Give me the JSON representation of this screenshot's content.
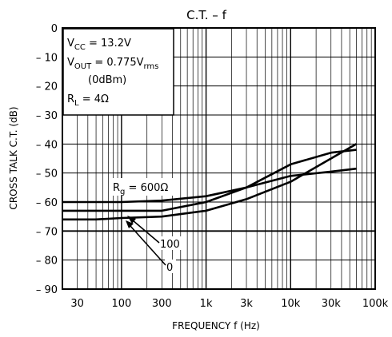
{
  "chart_data": {
    "type": "line",
    "title": "C.T.  –  f",
    "xlabel": "FREQUENCY   f    (Hz)",
    "ylabel": "CROSS TALK   C.T.   (dB)",
    "x_scale": "log",
    "xlim": [
      20,
      100000
    ],
    "ylim": [
      -90,
      0
    ],
    "grid": true,
    "x_ticks": [
      {
        "value": 30,
        "label": "30"
      },
      {
        "value": 100,
        "label": "100"
      },
      {
        "value": 300,
        "label": "300"
      },
      {
        "value": 1000,
        "label": "1k"
      },
      {
        "value": 3000,
        "label": "3k"
      },
      {
        "value": 10000,
        "label": "10k"
      },
      {
        "value": 30000,
        "label": "30k"
      },
      {
        "value": 100000,
        "label": "100k"
      }
    ],
    "y_ticks": [
      {
        "value": 0,
        "label": "0"
      },
      {
        "value": -10,
        "label": "– 10"
      },
      {
        "value": -20,
        "label": "– 20"
      },
      {
        "value": -30,
        "label": "– 30"
      },
      {
        "value": -40,
        "label": "– 40"
      },
      {
        "value": -50,
        "label": "– 50"
      },
      {
        "value": -60,
        "label": "– 60"
      },
      {
        "value": -70,
        "label": "– 70"
      },
      {
        "value": -80,
        "label": "– 80"
      },
      {
        "value": -90,
        "label": "– 90"
      }
    ],
    "conditions": {
      "vcc": {
        "pre": "V",
        "sub": "CC",
        "post": " = 13.2V"
      },
      "vout": {
        "pre": "V",
        "sub": "OUT",
        "post": " = 0.775V",
        "sub2": "rms"
      },
      "dbm": "(0dBm)",
      "rl": {
        "pre": "R",
        "sub": "L",
        "post": " = 4Ω"
      }
    },
    "annotations": {
      "rg": {
        "pre": "R",
        "sub": "g",
        "post": " = 600Ω"
      },
      "r100": "100",
      "r0": "0"
    },
    "series": [
      {
        "x": [
          20,
          50,
          100,
          300,
          1000,
          3000,
          10000,
          30000,
          60000
        ],
        "y": [
          -60,
          -60,
          -60,
          -59.5,
          -58,
          -55,
          -51,
          -49.5,
          -48.5
        ]
      },
      {
        "x": [
          20,
          50,
          100,
          300,
          1000,
          3000,
          10000,
          30000,
          60000
        ],
        "y": [
          -63,
          -63,
          -63,
          -63,
          -60,
          -55,
          -47,
          -43,
          -42
        ]
      },
      {
        "x": [
          20,
          50,
          100,
          300,
          1000,
          3000,
          10000,
          30000,
          60000
        ],
        "y": [
          -66,
          -66,
          -65.5,
          -65,
          -63,
          -59,
          -53,
          -45,
          -40
        ]
      }
    ]
  }
}
